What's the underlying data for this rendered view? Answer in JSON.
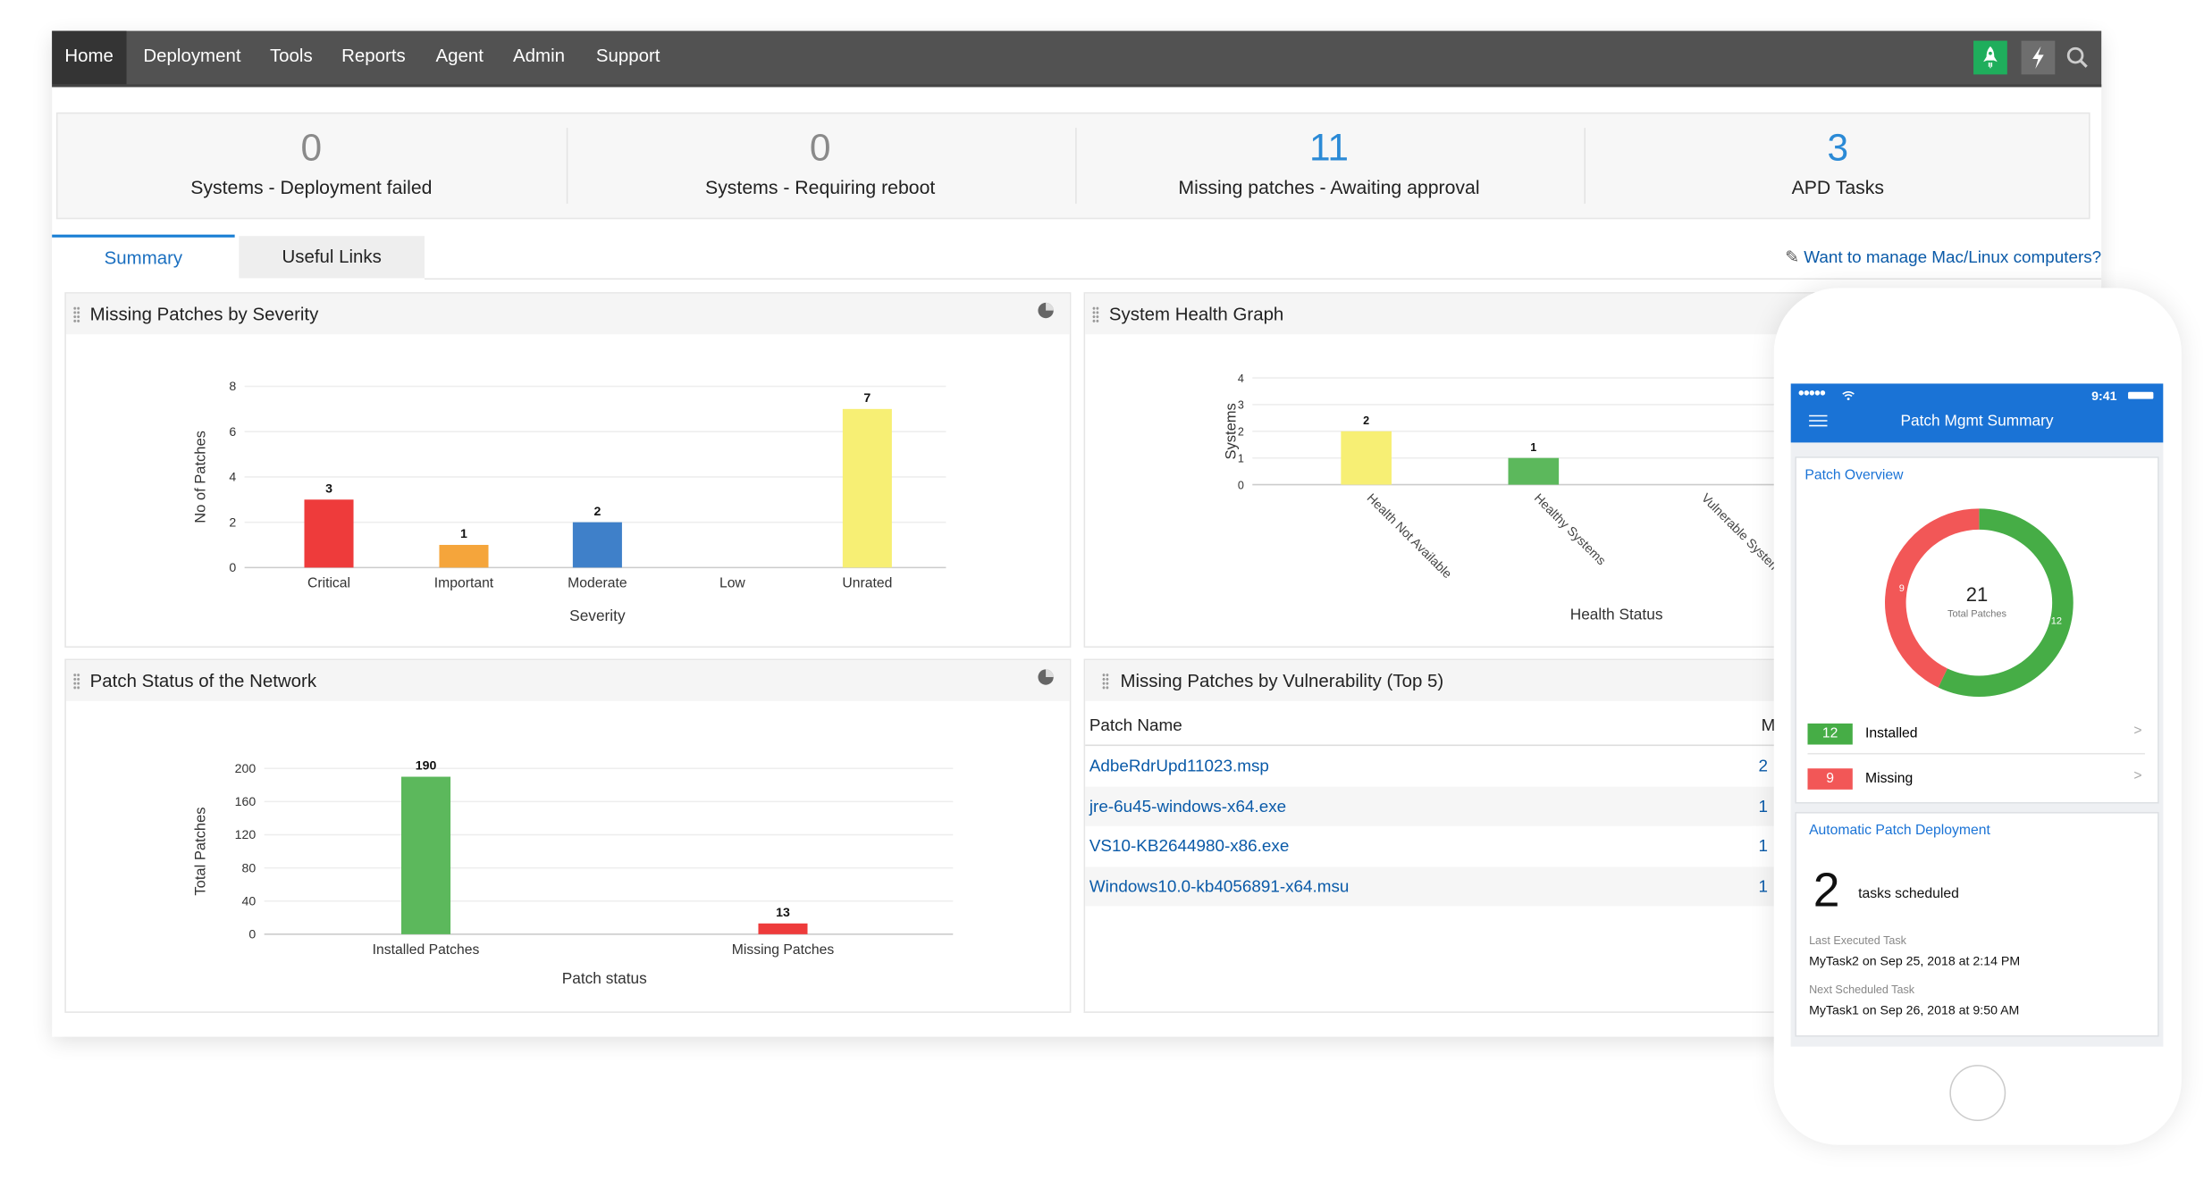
{
  "nav": {
    "items": [
      "Home",
      "Deployment",
      "Tools",
      "Reports",
      "Agent",
      "Admin",
      "Support"
    ],
    "active": "Home",
    "icons": [
      "rocket-icon",
      "lightning-icon",
      "search-icon"
    ]
  },
  "stats": [
    {
      "value": "0",
      "label": "Systems - Deployment failed"
    },
    {
      "value": "0",
      "label": "Systems - Requiring reboot"
    },
    {
      "value": "11",
      "label": "Missing patches - Awaiting approval"
    },
    {
      "value": "3",
      "label": "APD Tasks"
    }
  ],
  "tabs": {
    "summary": "Summary",
    "links": "Useful Links"
  },
  "mac_link": "Want to manage Mac/Linux computers?",
  "widgets": {
    "severity": {
      "title": "Missing Patches by Severity"
    },
    "health": {
      "title": "System Health Graph"
    },
    "network": {
      "title": "Patch Status of the Network"
    },
    "vuln": {
      "title": "Missing Patches by Vulnerability (Top 5)",
      "columns": [
        "Patch Name",
        "M"
      ],
      "rows": [
        {
          "name": "AdbeRdrUpd11023.msp",
          "value": "2"
        },
        {
          "name": "jre-6u45-windows-x64.exe",
          "value": "1"
        },
        {
          "name": "VS10-KB2644980-x86.exe",
          "value": "1"
        },
        {
          "name": "Windows10.0-kb4056891-x64.msu",
          "value": "1"
        }
      ]
    }
  },
  "chart_data": [
    {
      "type": "bar",
      "title": "Missing Patches by Severity",
      "categories": [
        "Critical",
        "Important",
        "Moderate",
        "Low",
        "Unrated"
      ],
      "values": [
        3,
        1,
        2,
        0,
        7
      ],
      "colors": [
        "#ee3b3b",
        "#f5a53b",
        "#3f80c9",
        "#cccccc",
        "#f7ef74"
      ],
      "xlabel": "Severity",
      "ylabel": "No of Patches",
      "ylim": [
        0,
        8
      ],
      "yticks": [
        0,
        2,
        4,
        6,
        8
      ]
    },
    {
      "type": "bar",
      "title": "System Health Graph",
      "categories": [
        "Health Not Available",
        "Healthy Systems",
        "Vulnerable Systems"
      ],
      "values": [
        2,
        1,
        0
      ],
      "colors": [
        "#f7ef74",
        "#5cb85c",
        "#e33b3b"
      ],
      "xlabel": "Health Status",
      "ylabel": "Systems",
      "ylim": [
        0,
        4
      ],
      "yticks": [
        0,
        1,
        2,
        3,
        4
      ]
    },
    {
      "type": "bar",
      "title": "Patch Status of the Network",
      "categories": [
        "Installed Patches",
        "Missing Patches"
      ],
      "values": [
        190,
        13
      ],
      "colors": [
        "#5cb85c",
        "#ee3b3b"
      ],
      "xlabel": "Patch status",
      "ylabel": "Total Patches",
      "ylim": [
        0,
        200
      ],
      "yticks": [
        0,
        40,
        80,
        120,
        160,
        200
      ]
    }
  ],
  "phone": {
    "time": "9:41",
    "title": "Patch Mgmt Summary",
    "overview_title": "Patch Overview",
    "total": "21",
    "total_label": "Total Patches",
    "installed": 12,
    "missing": 9,
    "installed_label": "Installed",
    "missing_label": "Missing",
    "installed_text": "12",
    "missing_text": "9",
    "apd_title": "Automatic Patch Deployment",
    "tasks_count": "2",
    "tasks_label": "tasks scheduled",
    "last_label": "Last Executed Task",
    "last_value": "MyTask2 on Sep 25, 2018 at 2:14 PM",
    "next_label": "Next Scheduled Task",
    "next_value": "MyTask1 on Sep 26, 2018 at 9:50 AM",
    "colors": {
      "installed": "#46ad46",
      "missing": "#f25757",
      "header": "#1a73d6"
    }
  }
}
